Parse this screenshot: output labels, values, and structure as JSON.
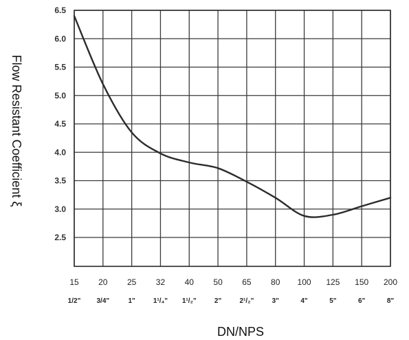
{
  "chart_data": {
    "type": "line",
    "xlabel": "DN/NPS",
    "ylabel": "Flow Resistant Coefficient ξ",
    "ylim": [
      2.5,
      6.5
    ],
    "yticks": [
      "6.5",
      "6.0",
      "5.5",
      "5.0",
      "4.5",
      "4.0",
      "3.5",
      "3.0",
      "2.5"
    ],
    "categories": [
      "15",
      "20",
      "25",
      "32",
      "40",
      "50",
      "65",
      "80",
      "100",
      "125",
      "150",
      "200"
    ],
    "nps_labels": [
      "1/2\"",
      "3/4\"",
      "1\"",
      "1¹/₄\"",
      "1¹/₂\"",
      "2\"",
      "2¹/₂\"",
      "3\"",
      "4\"",
      "5\"",
      "6\"",
      "8\""
    ],
    "grid": true,
    "series": [
      {
        "x": [
          15,
          20,
          25,
          32,
          40,
          50,
          65,
          80,
          100,
          125,
          150,
          200
        ],
        "values": [
          6.4,
          5.2,
          4.35,
          3.98,
          3.82,
          3.72,
          3.48,
          3.2,
          2.88,
          2.9,
          3.05,
          3.2
        ]
      }
    ]
  }
}
